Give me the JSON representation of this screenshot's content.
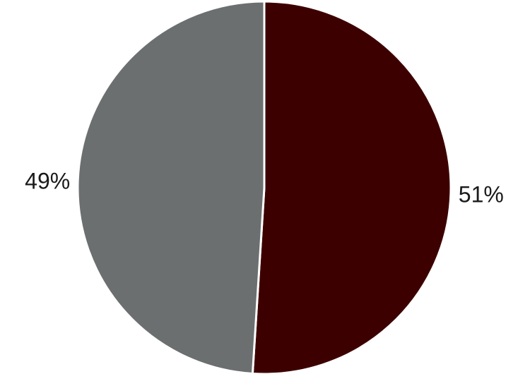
{
  "chart_data": {
    "type": "pie",
    "title": "",
    "slices": [
      {
        "label": "51%",
        "value": 51,
        "color": "#3d0000"
      },
      {
        "label": "49%",
        "value": 49,
        "color": "#6b6f70"
      }
    ],
    "legend": "none"
  }
}
